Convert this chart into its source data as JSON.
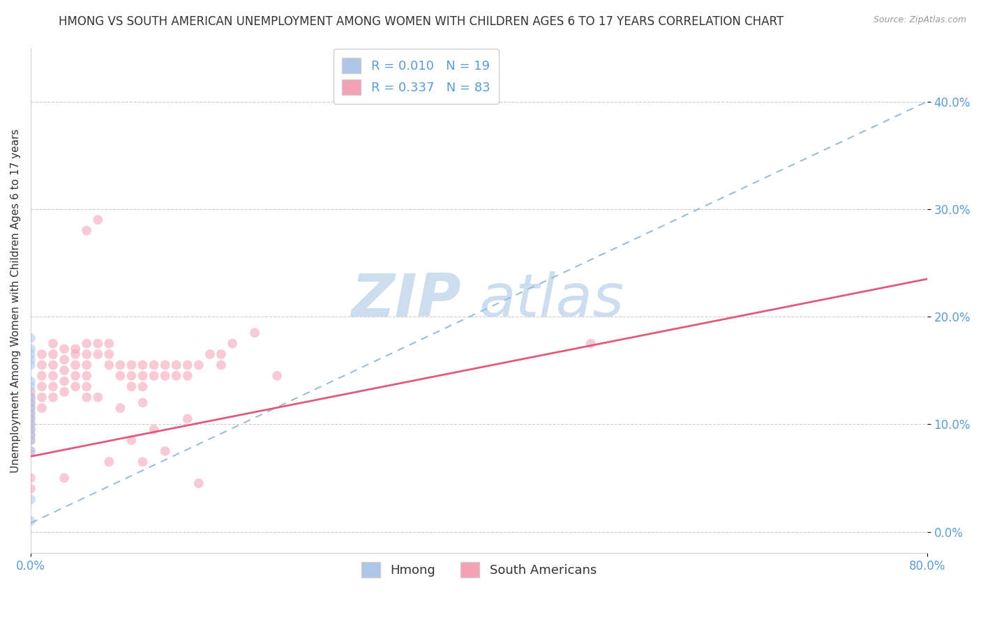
{
  "title": "HMONG VS SOUTH AMERICAN UNEMPLOYMENT AMONG WOMEN WITH CHILDREN AGES 6 TO 17 YEARS CORRELATION CHART",
  "source": "Source: ZipAtlas.com",
  "ylabel": "Unemployment Among Women with Children Ages 6 to 17 years",
  "legend_entries": [
    {
      "label_r": "R = 0.010",
      "label_n": "N = 19",
      "color": "#aec6e8"
    },
    {
      "label_r": "R = 0.337",
      "label_n": "N = 83",
      "color": "#f4a0b5"
    }
  ],
  "legend_labels_bottom": [
    "Hmong",
    "South Americans"
  ],
  "xlim": [
    0.0,
    0.8
  ],
  "ylim": [
    -0.02,
    0.45
  ],
  "yticks": [
    0.0,
    0.1,
    0.2,
    0.3,
    0.4
  ],
  "ytick_labels": [
    "0.0%",
    "10.0%",
    "20.0%",
    "30.0%",
    "40.0%"
  ],
  "xticks": [
    0.0,
    0.8
  ],
  "xtick_labels": [
    "0.0%",
    "80.0%"
  ],
  "grid_color": "#cccccc",
  "axis_color": "#5b9bd5",
  "watermark_zip": "ZIP",
  "watermark_atlas": "atlas",
  "watermark_color": "#ccddf0",
  "hmong_scatter_x": [
    0.0,
    0.0,
    0.0,
    0.0,
    0.0,
    0.0,
    0.0,
    0.0,
    0.0,
    0.0,
    0.0,
    0.0,
    0.0,
    0.0,
    0.0,
    0.0,
    0.0,
    0.0,
    0.0
  ],
  "hmong_scatter_y": [
    0.18,
    0.17,
    0.165,
    0.16,
    0.155,
    0.14,
    0.135,
    0.125,
    0.12,
    0.115,
    0.11,
    0.105,
    0.1,
    0.095,
    0.09,
    0.085,
    0.075,
    0.03,
    0.01
  ],
  "south_american_scatter_x": [
    0.0,
    0.0,
    0.0,
    0.0,
    0.0,
    0.0,
    0.0,
    0.0,
    0.0,
    0.0,
    0.0,
    0.0,
    0.0,
    0.01,
    0.01,
    0.01,
    0.01,
    0.01,
    0.01,
    0.02,
    0.02,
    0.02,
    0.02,
    0.02,
    0.02,
    0.03,
    0.03,
    0.03,
    0.03,
    0.03,
    0.03,
    0.04,
    0.04,
    0.04,
    0.04,
    0.04,
    0.05,
    0.05,
    0.05,
    0.05,
    0.05,
    0.05,
    0.05,
    0.06,
    0.06,
    0.06,
    0.06,
    0.07,
    0.07,
    0.07,
    0.07,
    0.08,
    0.08,
    0.08,
    0.09,
    0.09,
    0.09,
    0.09,
    0.1,
    0.1,
    0.1,
    0.1,
    0.1,
    0.11,
    0.11,
    0.11,
    0.12,
    0.12,
    0.12,
    0.13,
    0.13,
    0.14,
    0.14,
    0.14,
    0.15,
    0.15,
    0.16,
    0.17,
    0.17,
    0.18,
    0.2,
    0.22,
    0.5
  ],
  "south_american_scatter_y": [
    0.13,
    0.125,
    0.12,
    0.115,
    0.11,
    0.105,
    0.1,
    0.095,
    0.09,
    0.085,
    0.075,
    0.05,
    0.04,
    0.165,
    0.155,
    0.145,
    0.135,
    0.125,
    0.115,
    0.175,
    0.165,
    0.155,
    0.145,
    0.135,
    0.125,
    0.17,
    0.16,
    0.15,
    0.14,
    0.13,
    0.05,
    0.17,
    0.165,
    0.155,
    0.145,
    0.135,
    0.28,
    0.175,
    0.165,
    0.155,
    0.145,
    0.135,
    0.125,
    0.29,
    0.175,
    0.165,
    0.125,
    0.175,
    0.165,
    0.155,
    0.065,
    0.155,
    0.145,
    0.115,
    0.155,
    0.145,
    0.135,
    0.085,
    0.155,
    0.145,
    0.135,
    0.12,
    0.065,
    0.155,
    0.145,
    0.095,
    0.155,
    0.145,
    0.075,
    0.155,
    0.145,
    0.155,
    0.145,
    0.105,
    0.155,
    0.045,
    0.165,
    0.165,
    0.155,
    0.175,
    0.185,
    0.145,
    0.175
  ],
  "hmong_line_x": [
    0.0,
    0.8
  ],
  "hmong_line_y": [
    0.008,
    0.4
  ],
  "south_american_line_x": [
    0.0,
    0.8
  ],
  "south_american_line_y": [
    0.07,
    0.235
  ],
  "scatter_size": 100,
  "scatter_alpha": 0.55,
  "hmong_color": "#aec6e8",
  "south_american_color": "#f4a0b5",
  "south_american_line_color": "#e05a7a",
  "dashed_line_color": "#9bbdd6",
  "background_color": "#ffffff",
  "title_fontsize": 12,
  "label_fontsize": 11,
  "tick_fontsize": 12
}
